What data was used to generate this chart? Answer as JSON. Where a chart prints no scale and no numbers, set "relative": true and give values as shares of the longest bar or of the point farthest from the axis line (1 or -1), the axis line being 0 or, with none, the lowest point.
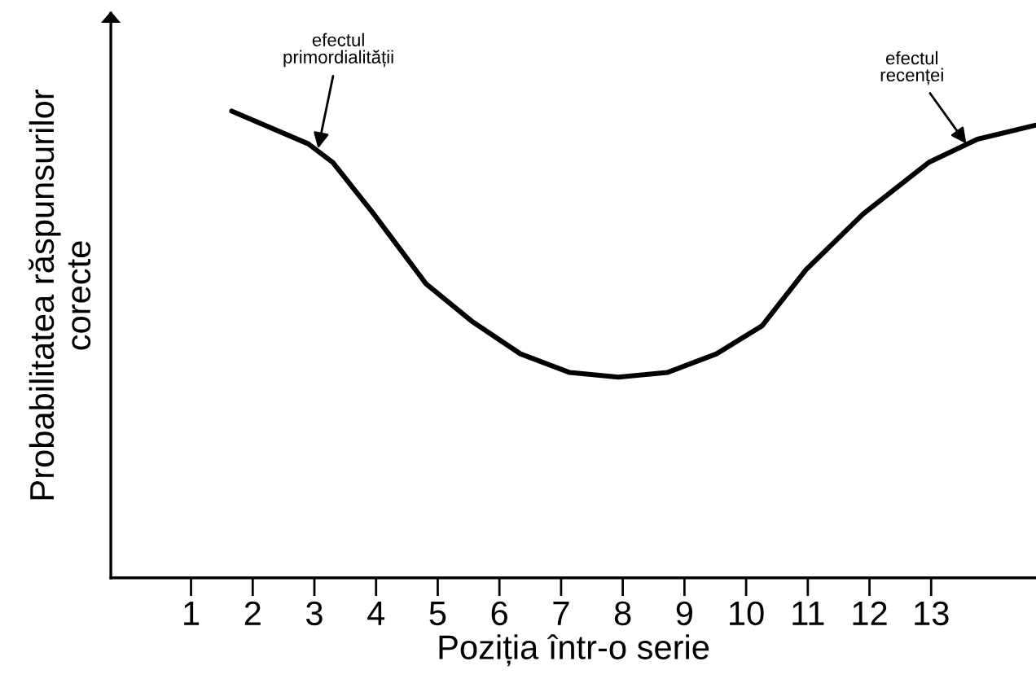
{
  "chart_data": {
    "type": "line",
    "relative": true,
    "xlabel": "Poziția într-o serie",
    "ylabel": "Probabilitatea răspunsurilor\ncorecte",
    "xlim": [
      -0.3,
      14.7
    ],
    "xticks": [
      1,
      2,
      3,
      4,
      5,
      6,
      7,
      8,
      9,
      10,
      11,
      12,
      13
    ],
    "series": [
      {
        "color": "#000000",
        "x": [
          1.66,
          2.9,
          3.3,
          3.96,
          4.81,
          5.55,
          6.34,
          7.14,
          7.93,
          8.72,
          9.52,
          10.26,
          10.97,
          11.9,
          12.96,
          13.75,
          14.7
        ],
        "values": [
          1.0,
          0.93,
          0.89,
          0.78,
          0.63,
          0.55,
          0.48,
          0.44,
          0.43,
          0.44,
          0.48,
          0.54,
          0.66,
          0.78,
          0.89,
          0.94,
          0.97
        ]
      }
    ],
    "annotations": [
      {
        "text": "efectul\nprimordialității",
        "x": 3.06,
        "y": 0.92
      },
      {
        "text": "efectul\nrecenței",
        "x": 13.57,
        "y": 0.93
      }
    ],
    "grid": false,
    "legend": false,
    "marker": "none",
    "line_style": "solid"
  }
}
